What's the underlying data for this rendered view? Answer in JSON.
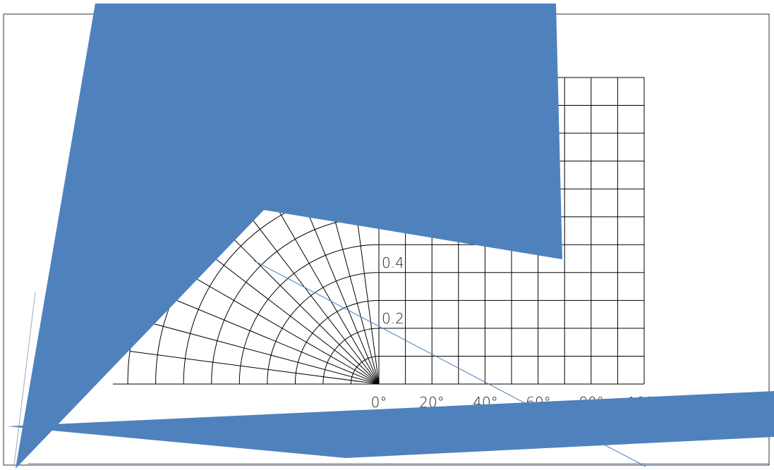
{
  "radius_labels": [
    "0.4",
    "0.2"
  ],
  "origin_label": "0",
  "angle_labels": [
    "0°",
    "20°",
    "40°",
    "60°",
    "80°",
    "100°"
  ]
}
